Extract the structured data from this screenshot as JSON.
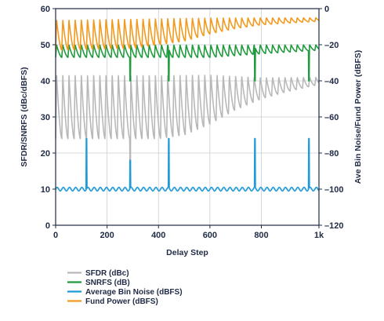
{
  "chart_data": {
    "type": "line",
    "title": "",
    "xlabel": "Delay Step",
    "ylabel_left": "SFDR/SNRFS (dBc/dBFS)",
    "ylabel_right": "Ave Bin Noise/Fund Power (dBFS)",
    "xlim": [
      0,
      1024
    ],
    "ylim_left": [
      0,
      60
    ],
    "ylim_right": [
      -120,
      0
    ],
    "x_ticks": [
      0,
      200,
      400,
      600,
      800,
      1024
    ],
    "x_tick_labels": [
      "0",
      "200",
      "400",
      "600",
      "800",
      "1k"
    ],
    "y_left_ticks": [
      0,
      10,
      20,
      30,
      40,
      50,
      60
    ],
    "y_left_tick_labels": [
      "0",
      "10",
      "20",
      "30",
      "40",
      "50",
      "60"
    ],
    "y_right_ticks": [
      -120,
      -100,
      -80,
      -60,
      -40,
      -20,
      0
    ],
    "y_right_tick_labels": [
      "–120",
      "–100",
      "–80",
      "–60",
      "–40",
      "–20",
      "0"
    ],
    "grid": true,
    "legend_position": "bottom-left",
    "period": 24,
    "series": [
      {
        "name": "SFDR (dBc)",
        "axis": "left",
        "color": "#b8b8b8",
        "peak": [
          [
            0,
            42
          ],
          [
            600,
            42
          ],
          [
            800,
            41
          ],
          [
            1024,
            41
          ]
        ],
        "trough": [
          [
            0,
            24
          ],
          [
            400,
            24
          ],
          [
            500,
            25
          ],
          [
            600,
            28
          ],
          [
            700,
            32
          ],
          [
            800,
            35
          ],
          [
            900,
            37
          ],
          [
            1024,
            39
          ]
        ],
        "dips": [
          {
            "x": 290,
            "y": 17
          }
        ]
      },
      {
        "name": "SNRFS (dB)",
        "axis": "left",
        "color": "#1f9a3c",
        "peak": [
          [
            0,
            50
          ],
          [
            1024,
            50
          ]
        ],
        "trough": [
          [
            0,
            46.5
          ],
          [
            600,
            46.5
          ],
          [
            800,
            47.5
          ],
          [
            1024,
            48.5
          ]
        ],
        "dips": [
          {
            "x": 290,
            "y": 40
          },
          {
            "x": 440,
            "y": 40
          },
          {
            "x": 775,
            "y": 40
          },
          {
            "x": 985,
            "y": 40
          }
        ]
      },
      {
        "name": "Average Bin Noise (dBFS)",
        "axis": "right",
        "color": "#1e9bd7",
        "peak": [
          [
            0,
            -99
          ],
          [
            1024,
            -99
          ]
        ],
        "trough": [
          [
            0,
            -101
          ],
          [
            1024,
            -101
          ]
        ],
        "dips": [
          {
            "x": 120,
            "y": -72
          },
          {
            "x": 290,
            "y": -84
          },
          {
            "x": 440,
            "y": -72
          },
          {
            "x": 775,
            "y": -72
          },
          {
            "x": 985,
            "y": -72
          }
        ]
      },
      {
        "name": "Fund Power (dBFS)",
        "axis": "right",
        "color": "#f39a1e",
        "peak": [
          [
            0,
            -6
          ],
          [
            500,
            -5
          ],
          [
            1024,
            -5
          ]
        ],
        "trough": [
          [
            0,
            -23
          ],
          [
            300,
            -22
          ],
          [
            500,
            -18
          ],
          [
            600,
            -14
          ],
          [
            700,
            -11
          ],
          [
            800,
            -9
          ],
          [
            900,
            -8
          ],
          [
            1024,
            -7
          ]
        ],
        "dips": []
      }
    ]
  }
}
